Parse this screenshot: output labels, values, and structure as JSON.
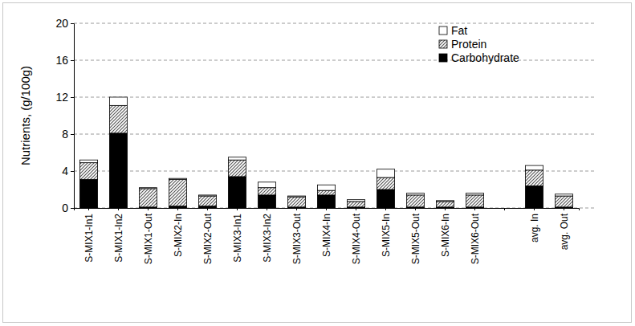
{
  "chart_data": {
    "type": "bar",
    "stacked": true,
    "grid": true,
    "legend": "top-right",
    "y_label": "Nutrients, (g/100g)",
    "categories": [
      "S-MIX1-In1",
      "S-MIX1-In2",
      "S-MIX1-Out",
      "S-MIX2-In",
      "S-MIX2-Out",
      "S-MIX3-In1",
      "S-MIX3-In2",
      "S-MIX3-Out",
      "S-MIX4-In",
      "S-MIX4-Out",
      "S-MIX5-In",
      "S-MIX5-Out",
      "S-MIX6-In",
      "S-MIX6-Out",
      null,
      "avg. In",
      "avg. Out"
    ],
    "series": [
      {
        "name": "Carbohydrate",
        "color": "#000000",
        "values": [
          3.1,
          8.1,
          0.1,
          0.2,
          0.2,
          3.4,
          1.4,
          0.1,
          1.4,
          0.1,
          2.0,
          0.1,
          0.1,
          0.1,
          null,
          2.4,
          0.1
        ]
      },
      {
        "name": "Protein",
        "color": "#555555",
        "values": [
          1.8,
          3.0,
          2.0,
          2.9,
          1.1,
          1.8,
          0.8,
          1.1,
          0.5,
          0.6,
          1.3,
          1.3,
          0.6,
          1.3,
          null,
          1.7,
          1.2
        ]
      },
      {
        "name": "Fat",
        "color": "#ffffff",
        "values": [
          0.3,
          0.9,
          0.1,
          0.1,
          0.1,
          0.3,
          0.6,
          0.1,
          0.6,
          0.2,
          0.9,
          0.2,
          0.1,
          0.2,
          null,
          0.5,
          0.2
        ]
      }
    ],
    "ylim": [
      0,
      20
    ],
    "yticks": [
      0,
      4,
      8,
      12,
      16,
      20
    ]
  }
}
